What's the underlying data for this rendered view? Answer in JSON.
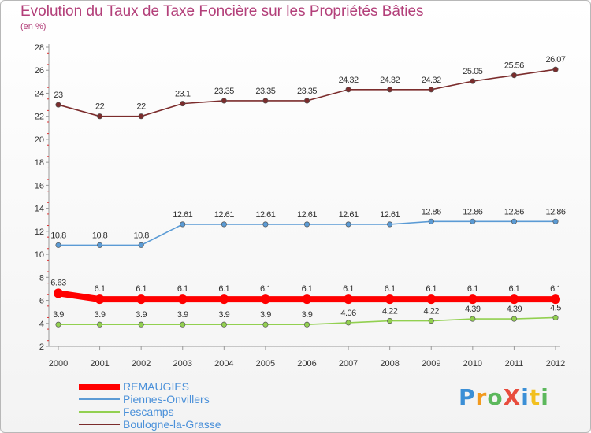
{
  "title": "Evolution du Taux de Taxe Foncière sur les Propriétés Bâties",
  "subtitle": "(en %)",
  "logo": {
    "text": "Proxiti",
    "letters": [
      {
        "ch": "P",
        "color": "#3b8fd6"
      },
      {
        "ch": "r",
        "color": "#f29a1f"
      },
      {
        "ch": "o",
        "color": "#5cb85c"
      },
      {
        "ch": "X",
        "color": "#e84c3d"
      },
      {
        "ch": "i",
        "color": "#3b8fd6"
      },
      {
        "ch": "t",
        "color": "#f2c01f"
      },
      {
        "ch": "i",
        "color": "#5cb85c"
      }
    ]
  },
  "chart_data": {
    "type": "line",
    "title": "Evolution du Taux de Taxe Foncière sur les Propriétés Bâties",
    "subtitle": "(en %)",
    "xlabel": "",
    "ylabel": "",
    "x": [
      "2000",
      "2001",
      "2002",
      "2003",
      "2004",
      "2005",
      "2006",
      "2007",
      "2008",
      "2009",
      "2010",
      "2011",
      "2012"
    ],
    "ylim": [
      2,
      28
    ],
    "yticks": [
      "2",
      "4",
      "6",
      "8",
      "10",
      "12",
      "14",
      "16",
      "18",
      "20",
      "22",
      "24",
      "26",
      "28"
    ],
    "grid": false,
    "legend_position": "bottom-left",
    "series": [
      {
        "name": "REMAUGIES",
        "color": "#ff0000",
        "emphasis": true,
        "values": [
          6.63,
          6.1,
          6.1,
          6.1,
          6.1,
          6.1,
          6.1,
          6.1,
          6.1,
          6.1,
          6.1,
          6.1,
          6.1
        ],
        "labels": [
          "6.63",
          "6.1",
          "6.1",
          "6.1",
          "6.1",
          "6.1",
          "6.1",
          "6.1",
          "6.1",
          "6.1",
          "6.1",
          "6.1",
          "6.1"
        ]
      },
      {
        "name": "Piennes-Onvillers",
        "color": "#5b9bd5",
        "emphasis": false,
        "values": [
          10.8,
          10.8,
          10.8,
          12.61,
          12.61,
          12.61,
          12.61,
          12.61,
          12.61,
          12.86,
          12.86,
          12.86,
          12.86
        ],
        "labels": [
          "10.8",
          "10.8",
          "10.8",
          "12.61",
          "12.61",
          "12.61",
          "12.61",
          "12.61",
          "12.61",
          "12.86",
          "12.86",
          "12.86",
          "12.86"
        ]
      },
      {
        "name": "Fescamps",
        "color": "#92d050",
        "emphasis": false,
        "values": [
          3.9,
          3.9,
          3.9,
          3.9,
          3.9,
          3.9,
          3.9,
          4.06,
          4.22,
          4.22,
          4.39,
          4.39,
          4.5
        ],
        "labels": [
          "3.9",
          "3.9",
          "3.9",
          "3.9",
          "3.9",
          "3.9",
          "3.9",
          "4.06",
          "4.22",
          "4.22",
          "4.39",
          "4.39",
          "4.5"
        ]
      },
      {
        "name": "Boulogne-la-Grasse",
        "color": "#7b2c2c",
        "emphasis": false,
        "values": [
          23,
          22,
          22,
          23.1,
          23.35,
          23.35,
          23.35,
          24.32,
          24.32,
          24.32,
          25.05,
          25.56,
          26.07
        ],
        "labels": [
          "23",
          "22",
          "22",
          "23.1",
          "23.35",
          "23.35",
          "23.35",
          "24.32",
          "24.32",
          "24.32",
          "25.05",
          "25.56",
          "26.07"
        ]
      }
    ]
  }
}
